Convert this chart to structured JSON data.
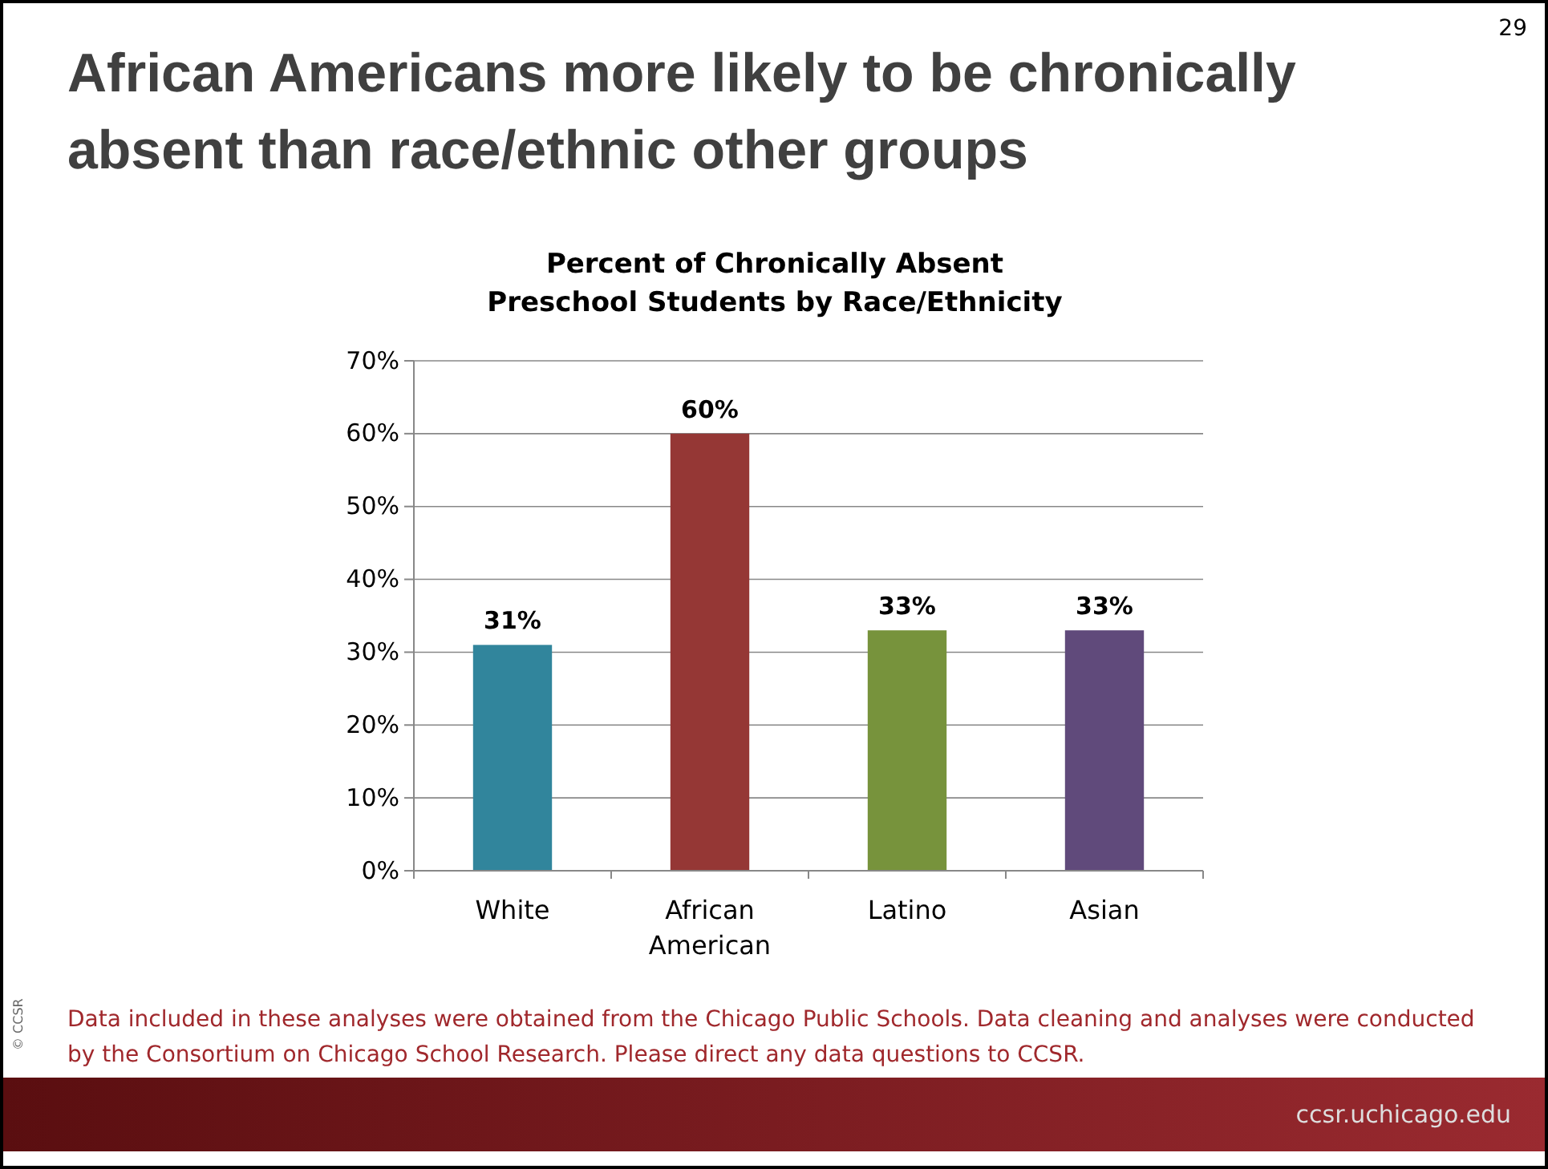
{
  "chart_data": {
    "type": "bar",
    "title": "African Americans more likely to be chronically absent than race/ethnic other groups",
    "subtitle": "Percent of Chronically Absent Preschool Students by Race/Ethnicity",
    "categories": [
      "White",
      "African American",
      "Latino",
      "Asian"
    ],
    "values": [
      31,
      60,
      33,
      33
    ],
    "colors": [
      "#31859c",
      "#953735",
      "#77933c",
      "#604a7b"
    ],
    "ylim": [
      0,
      70
    ],
    "yticks": [
      {
        "value": 0,
        "label": "0%"
      },
      {
        "value": 10,
        "label": "10%"
      },
      {
        "value": 20,
        "label": "20%"
      },
      {
        "value": 30,
        "label": "30%"
      },
      {
        "value": 40,
        "label": "40%"
      },
      {
        "value": 50,
        "label": "50%"
      },
      {
        "value": 60,
        "label": "60%"
      },
      {
        "value": 70,
        "label": "70%"
      }
    ],
    "grid": "y",
    "data_labels": true,
    "value_labels": [
      "31%",
      "60%",
      "33%",
      "33%"
    ],
    "annotations": [
      "Data included in these analyses were obtained from the Chicago Public Schools. Data cleaning and analyses were conducted by the Consortium on Chicago School Research. Please direct any data questions to CCSR.",
      "29",
      "© CCSR",
      "ccsr.uchicago.edu"
    ]
  }
}
